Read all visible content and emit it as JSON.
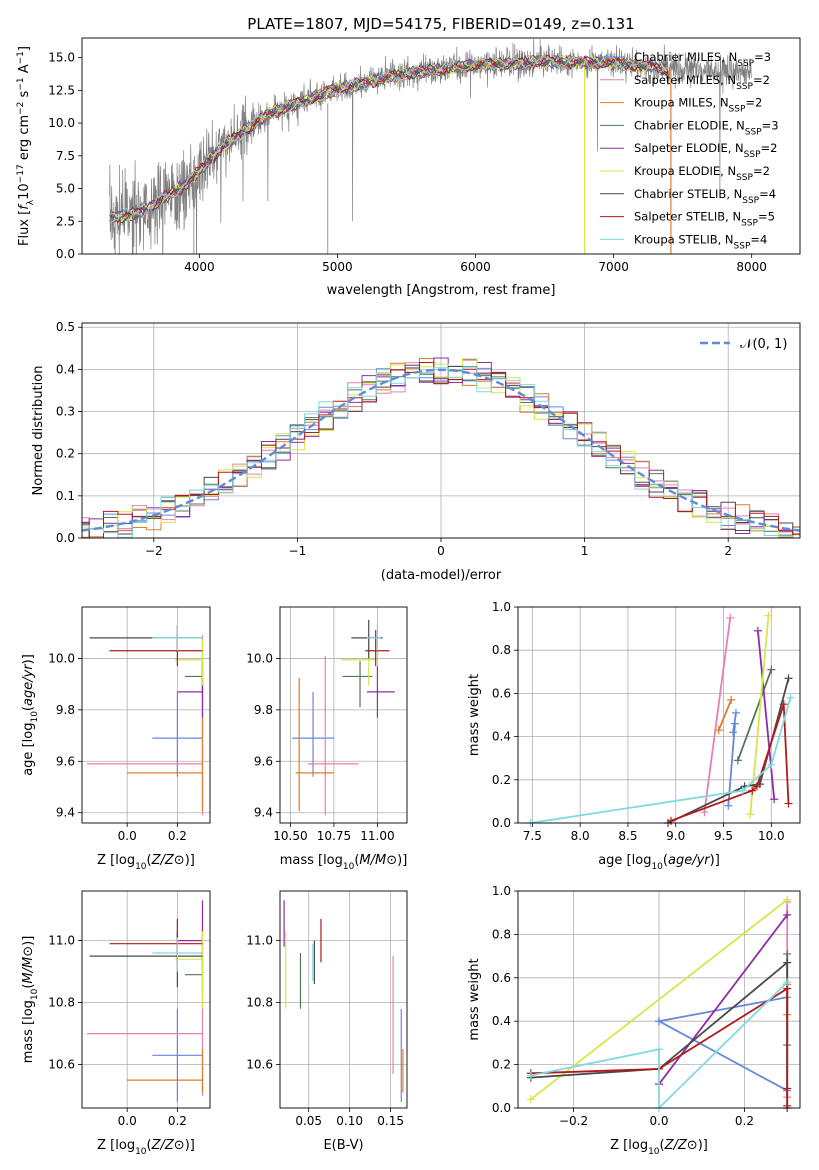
{
  "title": "PLATE=1807, MJD=54175, FIBERID=0149, z=0.131",
  "colors": {
    "Chabrier MILES": "#6688dd",
    "Salpeter MILES": "#e97fb3",
    "Kroupa MILES": "#e07b2a",
    "Chabrier ELODIE": "#557755",
    "Salpeter ELODIE": "#8e2ea6",
    "Kroupa ELODIE": "#d7e54a",
    "Chabrier STELIB": "#4a4a4a",
    "Salpeter STELIB": "#b11a1a",
    "Kroupa STELIB": "#7fd9e0",
    "data": "#808080",
    "gaussian": "#5b8ed6"
  },
  "chart_data": [
    {
      "type": "line",
      "panel": "spectrum",
      "xlabel": "wavelength [Angstrom, rest frame]",
      "ylabel": "Flux [f_λ 10^-17 erg cm^-2 s^-1 A^-1]",
      "xlim": [
        3150,
        8350
      ],
      "ylim": [
        0,
        16.5
      ],
      "xticks": [
        4000,
        5000,
        6000,
        7000,
        8000
      ],
      "yticks": [
        0.0,
        2.5,
        5.0,
        7.5,
        10.0,
        12.5,
        15.0
      ],
      "continuum_x": [
        3350,
        3600,
        3900,
        4200,
        4500,
        5000,
        5500,
        6000,
        6500,
        7000,
        7400,
        8000
      ],
      "continuum_y": [
        2.7,
        3.3,
        5.3,
        8.5,
        10.7,
        12.6,
        13.8,
        14.4,
        14.7,
        14.6,
        14.1,
        13.9
      ],
      "legend_loc": "upper right",
      "legend": [
        {
          "model": "Chabrier MILES",
          "label": "Chabrier MILES, N",
          "sub": "SSP",
          "n": "=3"
        },
        {
          "model": "Salpeter MILES",
          "label": "Salpeter MILES, N",
          "sub": "SSP",
          "n": "=2"
        },
        {
          "model": "Kroupa MILES",
          "label": "Kroupa MILES, N",
          "sub": "SSP",
          "n": "=2"
        },
        {
          "model": "Chabrier ELODIE",
          "label": "Chabrier ELODIE, N",
          "sub": "SSP",
          "n": "=3"
        },
        {
          "model": "Salpeter ELODIE",
          "label": "Salpeter ELODIE, N",
          "sub": "SSP",
          "n": "=2"
        },
        {
          "model": "Kroupa ELODIE",
          "label": "Kroupa ELODIE, N",
          "sub": "SSP",
          "n": "=2"
        },
        {
          "model": "Chabrier STELIB",
          "label": "Chabrier STELIB, N",
          "sub": "SSP",
          "n": "=4"
        },
        {
          "model": "Salpeter STELIB",
          "label": "Salpeter STELIB, N",
          "sub": "SSP",
          "n": "=5"
        },
        {
          "model": "Kroupa STELIB",
          "label": "Kroupa STELIB, N",
          "sub": "SSP",
          "n": "=4"
        }
      ]
    },
    {
      "type": "histogram",
      "panel": "residuals",
      "xlabel": "(data-model)/error",
      "ylabel": "Normed distribution",
      "xlim": [
        -2.5,
        2.5
      ],
      "ylim": [
        0,
        0.51
      ],
      "xticks": [
        -2,
        -1,
        0,
        1,
        2
      ],
      "yticks": [
        0.0,
        0.1,
        0.2,
        0.3,
        0.4,
        0.5
      ],
      "bin_width": 0.1,
      "reference": {
        "label": "𝒩(0, 1)",
        "mean": 0,
        "sigma": 1
      },
      "grid": true
    },
    {
      "type": "errorbar",
      "panel": "age-vs-Z",
      "xlabel": "Z [log10(Z/Z⊙)]",
      "ylabel": "age [log10(age/yr)]",
      "xlim": [
        -0.18,
        0.33
      ],
      "ylim": [
        9.36,
        10.2
      ],
      "xticks": [
        0.0,
        0.2
      ],
      "yticks": [
        9.4,
        9.6,
        9.8,
        10.0
      ],
      "points": [
        {
          "model": "Chabrier MILES",
          "x": 0.2,
          "xerr": [
            0.1,
            0.1
          ],
          "y": 9.69,
          "yerr": [
            0.15,
            0.18
          ]
        },
        {
          "model": "Salpeter MILES",
          "x": 0.3,
          "xerr": [
            0.46,
            0.0
          ],
          "y": 9.59,
          "yerr": [
            0.2,
            0.5
          ]
        },
        {
          "model": "Kroupa MILES",
          "x": 0.3,
          "xerr": [
            0.3,
            0.0
          ],
          "y": 9.555,
          "yerr": [
            0.15,
            0.45
          ]
        },
        {
          "model": "Chabrier ELODIE",
          "x": 0.3,
          "xerr": [
            0.07,
            0.0
          ],
          "y": 9.93,
          "yerr": [
            0.06,
            0.06
          ]
        },
        {
          "model": "Salpeter ELODIE",
          "x": 0.3,
          "xerr": [
            0.1,
            0.0
          ],
          "y": 9.87,
          "yerr": [
            0.1,
            0.1
          ]
        },
        {
          "model": "Kroupa ELODIE",
          "x": 0.3,
          "xerr": [
            0.11,
            0.0
          ],
          "y": 9.995,
          "yerr": [
            0.1,
            0.08
          ]
        },
        {
          "model": "Chabrier STELIB",
          "x": 0.2,
          "xerr": [
            0.35,
            0.1
          ],
          "y": 10.08,
          "yerr": [
            0.05,
            0.05
          ]
        },
        {
          "model": "Salpeter STELIB",
          "x": 0.2,
          "xerr": [
            0.27,
            0.1
          ],
          "y": 10.03,
          "yerr": [
            0.06,
            0.06
          ]
        },
        {
          "model": "Kroupa STELIB",
          "x": 0.2,
          "xerr": [
            0.1,
            0.1
          ],
          "y": 10.08,
          "yerr": [
            0.05,
            0.05
          ]
        }
      ]
    },
    {
      "type": "errorbar",
      "panel": "age-vs-mass",
      "xlabel": "mass [log10(M/M⊙)]",
      "xlim": [
        10.44,
        11.17
      ],
      "ylim": [
        9.36,
        10.2
      ],
      "xticks": [
        10.5,
        10.75,
        11.0
      ],
      "yticks": [
        9.4,
        9.6,
        9.8,
        10.0
      ],
      "points": [
        {
          "model": "Chabrier MILES",
          "x": 10.63,
          "xerr": [
            0.12,
            0.12
          ],
          "y": 9.69,
          "yerr": [
            0.15,
            0.18
          ]
        },
        {
          "model": "Salpeter MILES",
          "x": 10.7,
          "xerr": [
            0.1,
            0.19
          ],
          "y": 9.59,
          "yerr": [
            0.2,
            0.42
          ]
        },
        {
          "model": "Kroupa MILES",
          "x": 10.55,
          "xerr": [
            0.02,
            0.2
          ],
          "y": 9.555,
          "yerr": [
            0.15,
            0.37
          ]
        },
        {
          "model": "Chabrier ELODIE",
          "x": 10.9,
          "xerr": [
            0.1,
            0.07
          ],
          "y": 9.93,
          "yerr": [
            0.12,
            0.06
          ]
        },
        {
          "model": "Salpeter ELODIE",
          "x": 11.0,
          "xerr": [
            0.06,
            0.1
          ],
          "y": 9.87,
          "yerr": [
            0.1,
            0.1
          ]
        },
        {
          "model": "Kroupa ELODIE",
          "x": 10.95,
          "xerr": [
            0.16,
            0.05
          ],
          "y": 9.995,
          "yerr": [
            0.1,
            0.08
          ]
        },
        {
          "model": "Chabrier STELIB",
          "x": 10.95,
          "xerr": [
            0.1,
            0.08
          ],
          "y": 10.08,
          "yerr": [
            0.08,
            0.07
          ]
        },
        {
          "model": "Salpeter STELIB",
          "x": 10.99,
          "xerr": [
            0.06,
            0.08
          ],
          "y": 10.03,
          "yerr": [
            0.06,
            0.08
          ]
        },
        {
          "model": "Kroupa STELIB",
          "x": 11.0,
          "xerr": [
            0.06,
            0.02
          ],
          "y": 10.08,
          "yerr": [
            0.05,
            0.05
          ]
        }
      ]
    },
    {
      "type": "line",
      "panel": "weight-vs-age",
      "xlabel": "age [log10(age/yr)]",
      "ylabel": "mass weight",
      "xlim": [
        7.35,
        10.3
      ],
      "ylim": [
        0,
        1.0
      ],
      "xticks": [
        7.5,
        8.0,
        8.5,
        9.0,
        9.5,
        10.0
      ],
      "yticks": [
        0.0,
        0.2,
        0.4,
        0.6,
        0.8,
        1.0
      ],
      "grid": true,
      "series": [
        {
          "model": "Chabrier MILES",
          "x": [
            9.55,
            9.62,
            9.6,
            9.63
          ],
          "y": [
            0.08,
            0.46,
            0.42,
            0.51
          ]
        },
        {
          "model": "Salpeter MILES",
          "x": [
            9.3,
            9.57
          ],
          "y": [
            0.05,
            0.95
          ]
        },
        {
          "model": "Kroupa MILES",
          "x": [
            9.45,
            9.58
          ],
          "y": [
            0.43,
            0.57
          ]
        },
        {
          "model": "Chabrier ELODIE",
          "x": [
            9.65,
            10.0
          ],
          "y": [
            0.29,
            0.71
          ]
        },
        {
          "model": "Salpeter ELODIE",
          "x": [
            9.86,
            10.03
          ],
          "y": [
            0.89,
            0.11
          ]
        },
        {
          "model": "Kroupa ELODIE",
          "x": [
            9.78,
            9.97
          ],
          "y": [
            0.04,
            0.96
          ]
        },
        {
          "model": "Chabrier STELIB",
          "x": [
            8.92,
            9.72,
            9.88,
            10.18
          ],
          "y": [
            0.0,
            0.17,
            0.18,
            0.67
          ]
        },
        {
          "model": "Salpeter STELIB",
          "x": [
            8.95,
            9.8,
            9.85,
            10.13,
            10.18
          ],
          "y": [
            0.01,
            0.15,
            0.17,
            0.55,
            0.09
          ]
        },
        {
          "model": "Kroupa STELIB",
          "x": [
            7.48,
            9.7,
            10.0,
            10.2
          ],
          "y": [
            0.0,
            0.15,
            0.27,
            0.58
          ]
        }
      ]
    },
    {
      "type": "errorbar",
      "panel": "mass-vs-Z",
      "xlabel": "Z [log10(Z/Z⊙)]",
      "ylabel": "mass [log10(M/M⊙)]",
      "xlim": [
        -0.18,
        0.33
      ],
      "ylim": [
        10.46,
        11.16
      ],
      "xticks": [
        0.0,
        0.2
      ],
      "yticks": [
        10.6,
        10.8,
        11.0
      ],
      "points": [
        {
          "model": "Chabrier MILES",
          "x": 0.2,
          "xerr": [
            0.1,
            0.1
          ],
          "y": 10.63,
          "yerr": [
            0.15,
            0.15
          ]
        },
        {
          "model": "Salpeter MILES",
          "x": 0.3,
          "xerr": [
            0.46,
            0.0
          ],
          "y": 10.7,
          "yerr": [
            0.2,
            0.4
          ]
        },
        {
          "model": "Kroupa MILES",
          "x": 0.3,
          "xerr": [
            0.3,
            0.0
          ],
          "y": 10.55,
          "yerr": [
            0.04,
            0.1
          ]
        },
        {
          "model": "Chabrier ELODIE",
          "x": 0.3,
          "xerr": [
            0.07,
            0.0
          ],
          "y": 10.89,
          "yerr": [
            0.06,
            0.06
          ]
        },
        {
          "model": "Salpeter ELODIE",
          "x": 0.3,
          "xerr": [
            0.1,
            0.0
          ],
          "y": 11.0,
          "yerr": [
            0.08,
            0.13
          ]
        },
        {
          "model": "Kroupa ELODIE",
          "x": 0.3,
          "xerr": [
            0.11,
            0.0
          ],
          "y": 10.94,
          "yerr": [
            0.16,
            0.09
          ]
        },
        {
          "model": "Chabrier STELIB",
          "x": 0.2,
          "xerr": [
            0.35,
            0.1
          ],
          "y": 10.95,
          "yerr": [
            0.1,
            0.08
          ]
        },
        {
          "model": "Salpeter STELIB",
          "x": 0.2,
          "xerr": [
            0.27,
            0.1
          ],
          "y": 10.99,
          "yerr": [
            0.06,
            0.08
          ]
        },
        {
          "model": "Kroupa STELIB",
          "x": 0.2,
          "xerr": [
            0.1,
            0.1
          ],
          "y": 10.96,
          "yerr": [
            0.06,
            0.05
          ]
        }
      ]
    },
    {
      "type": "errorbar",
      "panel": "mass-vs-ebv",
      "xlabel": "E(B-V)",
      "xlim": [
        0.015,
        0.17
      ],
      "ylim": [
        10.46,
        11.16
      ],
      "xticks": [
        0.05,
        0.1,
        0.15
      ],
      "yticks": [
        10.6,
        10.8,
        11.0
      ],
      "points": [
        {
          "model": "Chabrier MILES",
          "x": 0.163,
          "y": 10.63,
          "yerr": [
            0.15,
            0.15
          ]
        },
        {
          "model": "Salpeter MILES",
          "x": 0.153,
          "y": 10.75,
          "yerr": [
            0.18,
            0.2
          ]
        },
        {
          "model": "Kroupa MILES",
          "x": 0.165,
          "y": 10.55,
          "yerr": [
            0.04,
            0.1
          ]
        },
        {
          "model": "Chabrier ELODIE",
          "x": 0.04,
          "y": 10.89,
          "yerr": [
            0.11,
            0.07
          ]
        },
        {
          "model": "Salpeter ELODIE",
          "x": 0.02,
          "y": 11.04,
          "yerr": [
            0.06,
            0.09
          ]
        },
        {
          "model": "Kroupa ELODIE",
          "x": 0.022,
          "y": 10.9,
          "yerr": [
            0.12,
            0.13
          ]
        },
        {
          "model": "Chabrier STELIB",
          "x": 0.057,
          "y": 10.94,
          "yerr": [
            0.08,
            0.06
          ]
        },
        {
          "model": "Salpeter STELIB",
          "x": 0.065,
          "y": 11.0,
          "yerr": [
            0.07,
            0.07
          ]
        },
        {
          "model": "Kroupa STELIB",
          "x": 0.055,
          "y": 10.93,
          "yerr": [
            0.06,
            0.06
          ]
        }
      ]
    },
    {
      "type": "line",
      "panel": "weight-vs-Z",
      "xlabel": "Z [log10(Z/Z⊙)]",
      "ylabel": "mass weight",
      "xlim": [
        -0.33,
        0.33
      ],
      "ylim": [
        0,
        1.0
      ],
      "xticks": [
        -0.2,
        0.0,
        0.2
      ],
      "yticks": [
        0.0,
        0.2,
        0.4,
        0.6,
        0.8,
        1.0
      ],
      "grid": true,
      "series": [
        {
          "model": "Chabrier MILES",
          "x": [
            0.3,
            0.0,
            0.0,
            0.3
          ],
          "y": [
            0.08,
            0.4,
            0.4,
            0.51
          ]
        },
        {
          "model": "Salpeter MILES",
          "x": [
            0.3,
            0.3
          ],
          "y": [
            0.05,
            0.95
          ]
        },
        {
          "model": "Kroupa MILES",
          "x": [
            0.3,
            0.3
          ],
          "y": [
            0.43,
            0.57
          ]
        },
        {
          "model": "Chabrier ELODIE",
          "x": [
            0.3,
            0.3
          ],
          "y": [
            0.29,
            0.71
          ]
        },
        {
          "model": "Salpeter ELODIE",
          "x": [
            0.0,
            0.3
          ],
          "y": [
            0.11,
            0.89
          ]
        },
        {
          "model": "Kroupa ELODIE",
          "x": [
            -0.3,
            0.3
          ],
          "y": [
            0.04,
            0.96
          ]
        },
        {
          "model": "Chabrier STELIB",
          "x": [
            -0.3,
            0.0,
            0.3,
            0.3
          ],
          "y": [
            0.14,
            0.18,
            0.67,
            0.0
          ]
        },
        {
          "model": "Salpeter STELIB",
          "x": [
            -0.3,
            0.0,
            0.3,
            0.3,
            0.3
          ],
          "y": [
            0.16,
            0.18,
            0.55,
            0.09,
            0.01
          ]
        },
        {
          "model": "Kroupa STELIB",
          "x": [
            -0.3,
            0.0,
            0.0,
            0.3
          ],
          "y": [
            0.15,
            0.27,
            0.0,
            0.58
          ]
        }
      ]
    }
  ]
}
